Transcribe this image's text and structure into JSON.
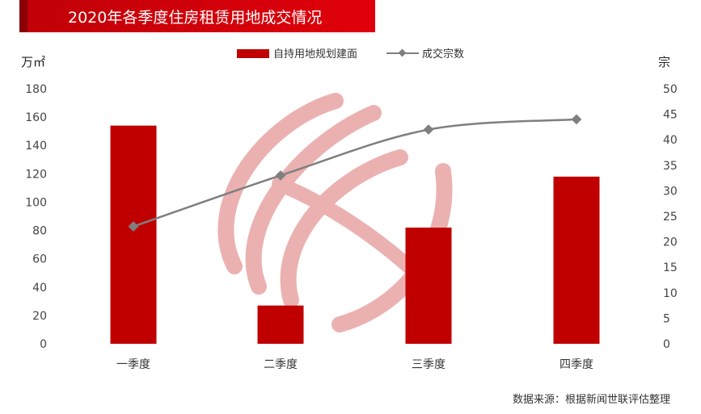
{
  "title": "2020年各季度住房租赁用地成交情况",
  "source": "数据来源：根据新闻世联评估整理",
  "colors": {
    "bar": "#c00000",
    "line": "#7f7f7f",
    "title_bg": "#d9000a"
  },
  "chart_data": {
    "type": "bar",
    "categories": [
      "一季度",
      "二季度",
      "三季度",
      "四季度"
    ],
    "left_axis": {
      "unit": "万㎡",
      "ylim": [
        0,
        180
      ],
      "ticks": [
        0,
        20,
        40,
        60,
        80,
        100,
        120,
        140,
        160,
        180
      ]
    },
    "right_axis": {
      "unit": "宗",
      "ylim": [
        0,
        50
      ],
      "ticks": [
        0,
        5,
        10,
        15,
        20,
        25,
        30,
        35,
        40,
        45,
        50
      ]
    },
    "series": [
      {
        "name": "自持用地规划建面",
        "type": "bar",
        "axis": "left",
        "values": [
          154,
          27,
          82,
          118
        ]
      },
      {
        "name": "成交宗数",
        "type": "line",
        "axis": "right",
        "values": [
          23,
          33,
          42,
          44
        ]
      }
    ],
    "legend_position": "top-center",
    "grid": false
  }
}
